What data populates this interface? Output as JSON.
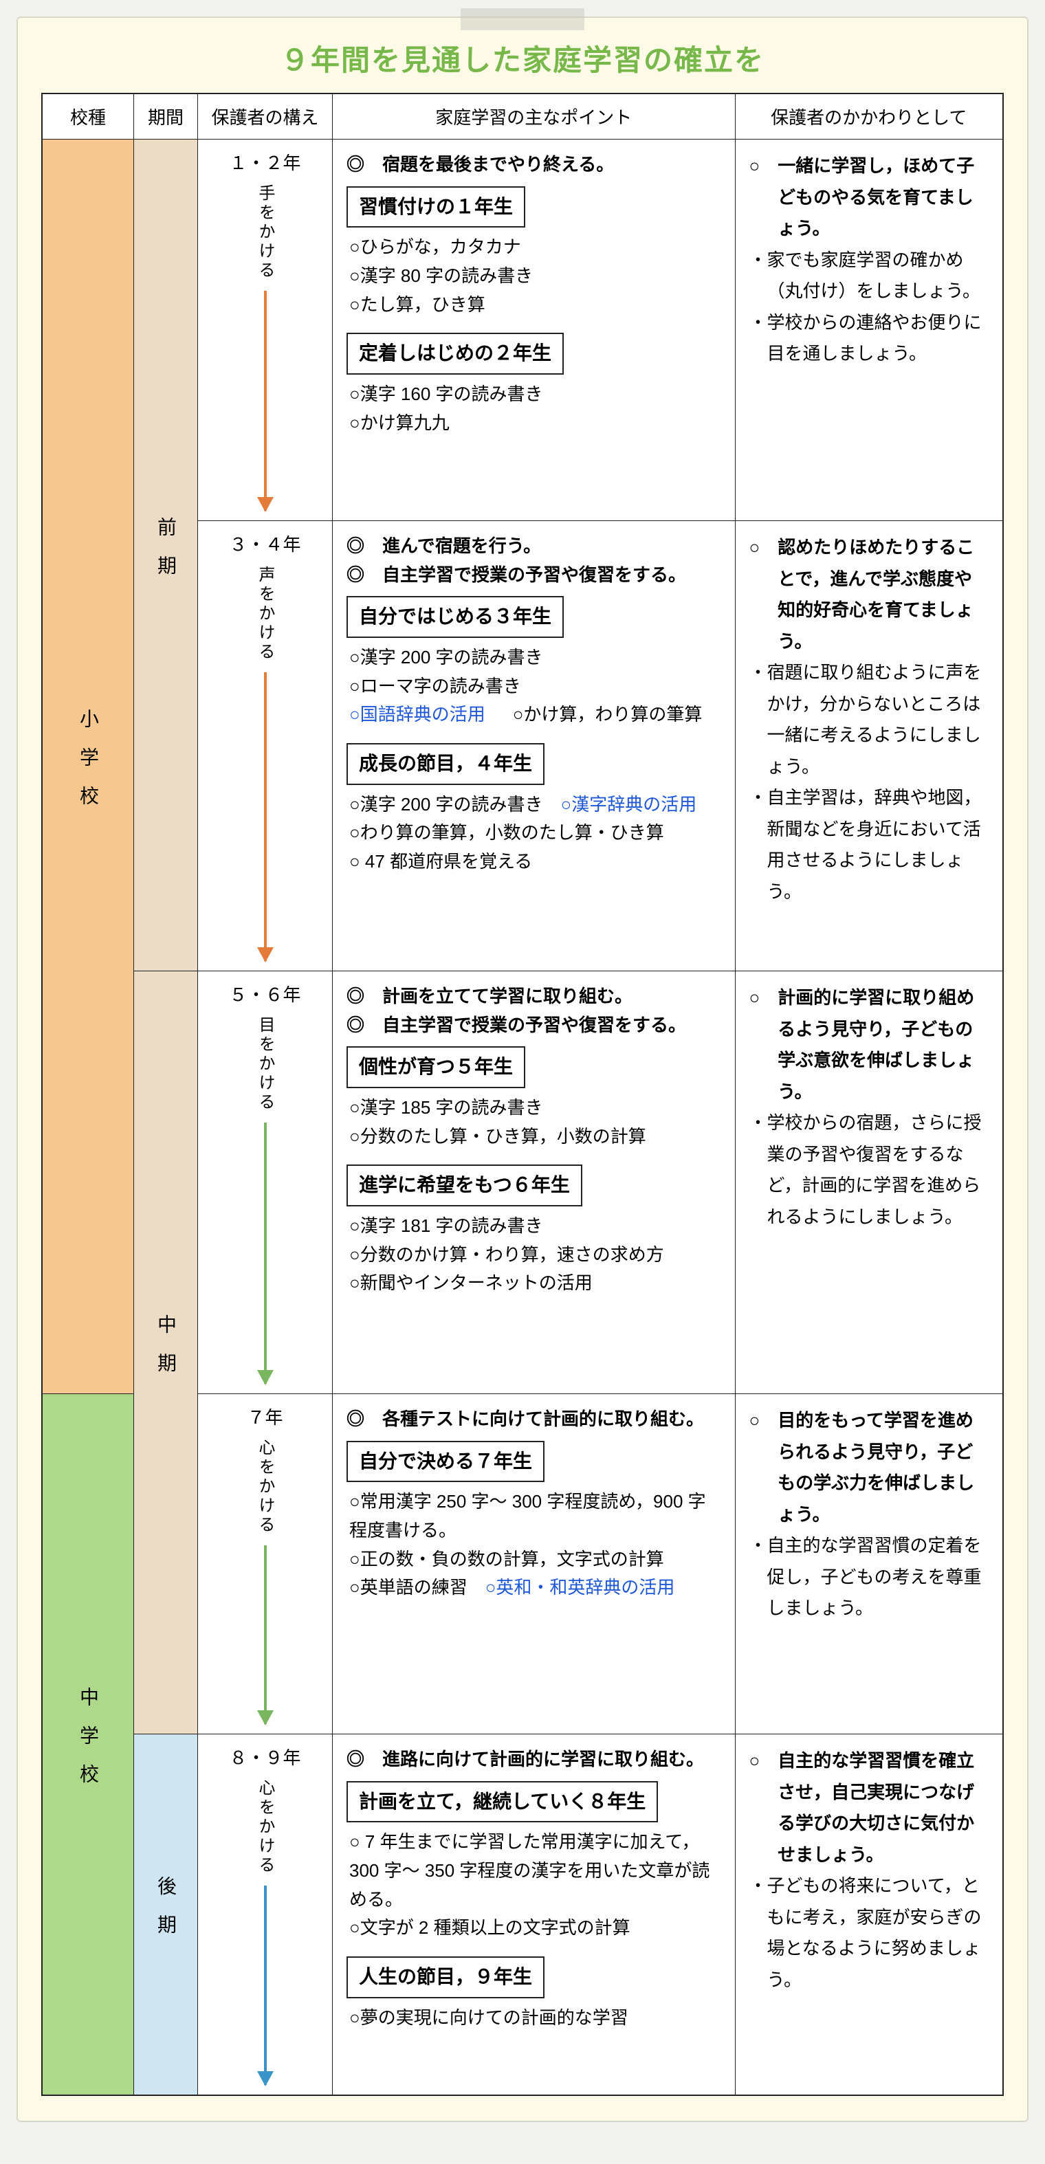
{
  "title": "９年間を見通した家庭学習の確立を",
  "headers": {
    "school": "校種",
    "period": "期間",
    "stance": "保護者の構え",
    "points": "家庭学習の主なポイント",
    "parent": "保護者のかかわりとして"
  },
  "schools": {
    "elem": "小学校",
    "jhs": "中学校"
  },
  "periods": {
    "early": "前期",
    "mid": "中期",
    "late": "後期"
  },
  "rows": [
    {
      "id": "r12",
      "years": "１・２年",
      "stance": "手をかける",
      "arrow": "orange",
      "arrowH": 320,
      "points": {
        "leads": [
          "◎　宿題を最後までやり終える。"
        ],
        "groups": [
          {
            "box": "習慣付けの１年生",
            "items": [
              "○ひらがな，カタカナ",
              "○漢字 80 字の読み書き",
              "○たし算，ひき算"
            ]
          },
          {
            "box": "定着しはじめの２年生",
            "items": [
              "○漢字 160 字の読み書き",
              "○かけ算九九"
            ]
          }
        ]
      },
      "parent": {
        "lead": "○　一緒に学習し，ほめて子どものやる気を育てましょう。",
        "subs": [
          "・家でも家庭学習の確かめ（丸付け）をしましょう。",
          "・学校からの連絡やお便りに目を通しましょう。"
        ]
      }
    },
    {
      "id": "r34",
      "years": "３・４年",
      "stance": "声をかける",
      "arrow": "orange",
      "arrowH": 420,
      "points": {
        "leads": [
          "◎　進んで宿題を行う。",
          "◎　自主学習で授業の予習や復習をする。"
        ],
        "groups": [
          {
            "box": "自分ではじめる３年生",
            "items": [
              "○漢字 200 字の読み書き",
              "○ローマ字の読み書き",
              "<span class='bluelink'>○国語辞典の活用</span>　○かけ算，わり算の筆算"
            ]
          },
          {
            "box": "成長の節目，４年生",
            "items": [
              "○漢字 200 字の読み書き　<span class='bluelink'>○漢字辞典の活用</span>",
              "○わり算の筆算，小数のたし算・ひき算",
              "○ 47 都道府県を覚える"
            ]
          }
        ]
      },
      "parent": {
        "lead": "○　認めたりほめたりすることで，進んで学ぶ態度や知的好奇心を育てましょう。",
        "subs": [
          "・宿題に取り組むように声をかけ，分からないところは一緒に考えるようにしましょう。",
          "・自主学習は，辞典や地図，新聞などを身近において活用させるようにしましょう。"
        ]
      }
    },
    {
      "id": "r56",
      "years": "５・６年",
      "stance": "目をかける",
      "arrow": "green",
      "arrowH": 380,
      "points": {
        "leads": [
          "◎　計画を立てて学習に取り組む。",
          "◎　自主学習で授業の予習や復習をする。"
        ],
        "groups": [
          {
            "box": "個性が育つ５年生",
            "items": [
              "○漢字 185 字の読み書き",
              "○分数のたし算・ひき算，小数の計算"
            ]
          },
          {
            "box": "進学に希望をもつ６年生",
            "items": [
              "○漢字 181 字の読み書き",
              "○分数のかけ算・わり算，速さの求め方",
              "○新聞やインターネットの活用"
            ]
          }
        ]
      },
      "parent": {
        "lead": "○　計画的に学習に取り組めるよう見守り，子どもの学ぶ意欲を伸ばしましょう。",
        "subs": [
          "・学校からの宿題，さらに授業の予習や復習をするなど，計画的に学習を進められるようにしましょう。"
        ]
      }
    },
    {
      "id": "r7",
      "years": "７年",
      "stance": "心をかける",
      "arrow": "green",
      "arrowH": 260,
      "points": {
        "leads": [
          "◎　各種テストに向けて計画的に取り組む。"
        ],
        "groups": [
          {
            "box": "自分で決める７年生",
            "items": [
              "○常用漢字 250 字〜 300 字程度読め，900 字程度書ける。",
              "○正の数・負の数の計算，文字式の計算",
              "○英単語の練習　<span class='bluelink'>○英和・和英辞典の活用</span>"
            ]
          }
        ]
      },
      "parent": {
        "lead": "○　目的をもって学習を進められるよう見守り，子どもの学ぶ力を伸ばしましょう。",
        "subs": [
          "・自主的な学習習慣の定着を促し，子どもの考えを尊重しましょう。"
        ]
      }
    },
    {
      "id": "r89",
      "years": "８・９年",
      "stance": "心をかける",
      "arrow": "blue",
      "arrowH": 290,
      "points": {
        "leads": [
          "◎　進路に向けて計画的に学習に取り組む。"
        ],
        "groups": [
          {
            "box": "計画を立て，継続していく８年生",
            "items": [
              "○ 7 年生までに学習した常用漢字に加えて，300 字〜 350 字程度の漢字を用いた文章が読める。",
              "○文字が 2 種類以上の文字式の計算"
            ]
          },
          {
            "box": "人生の節目，９年生",
            "items": [
              "○夢の実現に向けての計画的な学習"
            ]
          }
        ]
      },
      "parent": {
        "lead": "○　自主的な学習習慣を確立させ，自己実現につなげる学びの大切さに気付かせましょう。",
        "subs": [
          "・子どもの将来について，ともに考え，家庭が安らぎの場となるように努めましょう。"
        ]
      }
    }
  ],
  "colors": {
    "title": "#78b84a",
    "orange": "#e47b3b",
    "green": "#7ab560",
    "blue": "#3a93c9",
    "schoolElem": "#f6c88f",
    "schoolJhs": "#aed98b",
    "periodTan": "#eddcc5",
    "periodBlue": "#cfe6f2",
    "link": "#1f58d6"
  }
}
